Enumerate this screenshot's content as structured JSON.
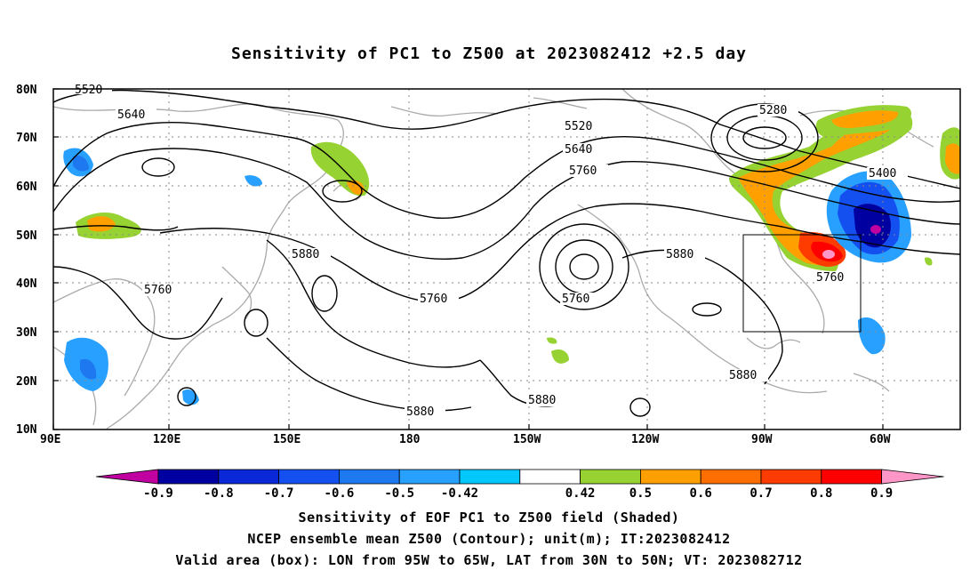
{
  "title": "Sensitivity of PC1 to Z500 at 2023082412 +2.5 day",
  "lat_labels": [
    "80N",
    "70N",
    "60N",
    "50N",
    "40N",
    "30N",
    "20N",
    "10N"
  ],
  "lon_labels": [
    "90E",
    "120E",
    "150E",
    "180",
    "150W",
    "120W",
    "90W",
    "60W"
  ],
  "contours": [
    {
      "value": "5520",
      "n": 2
    },
    {
      "value": "5640",
      "n": 2
    },
    {
      "value": "5760",
      "n": 5
    },
    {
      "value": "5280",
      "n": 1
    },
    {
      "value": "5400",
      "n": 1
    },
    {
      "value": "5880",
      "n": 5
    }
  ],
  "colorbar": {
    "labels": [
      "-0.9",
      "-0.8",
      "-0.7",
      "-0.6",
      "-0.5",
      "-0.42",
      "0.42",
      "0.5",
      "0.6",
      "0.7",
      "0.8",
      "0.9"
    ],
    "colors": [
      "#c000a0",
      "#0000a0",
      "#0a28d8",
      "#1450f0",
      "#1e78f0",
      "#28a0ff",
      "#00c8ff",
      "#ffffff",
      "#96d232",
      "#ffa000",
      "#ff6e00",
      "#ff3c00",
      "#ff0000",
      "#ff96c8"
    ]
  },
  "box": {
    "lon_west": "95W",
    "lon_east": "65W",
    "lat_south": "30N",
    "lat_north": "50N"
  },
  "captions": [
    "Sensitivity of EOF PC1 to Z500 field (Shaded)",
    "NCEP ensemble mean Z500 (Contour); unit(m); IT:2023082412",
    "Valid area (box): LON from 95W to 65W, LAT from 30N to 50N; VT: 2023082712"
  ]
}
